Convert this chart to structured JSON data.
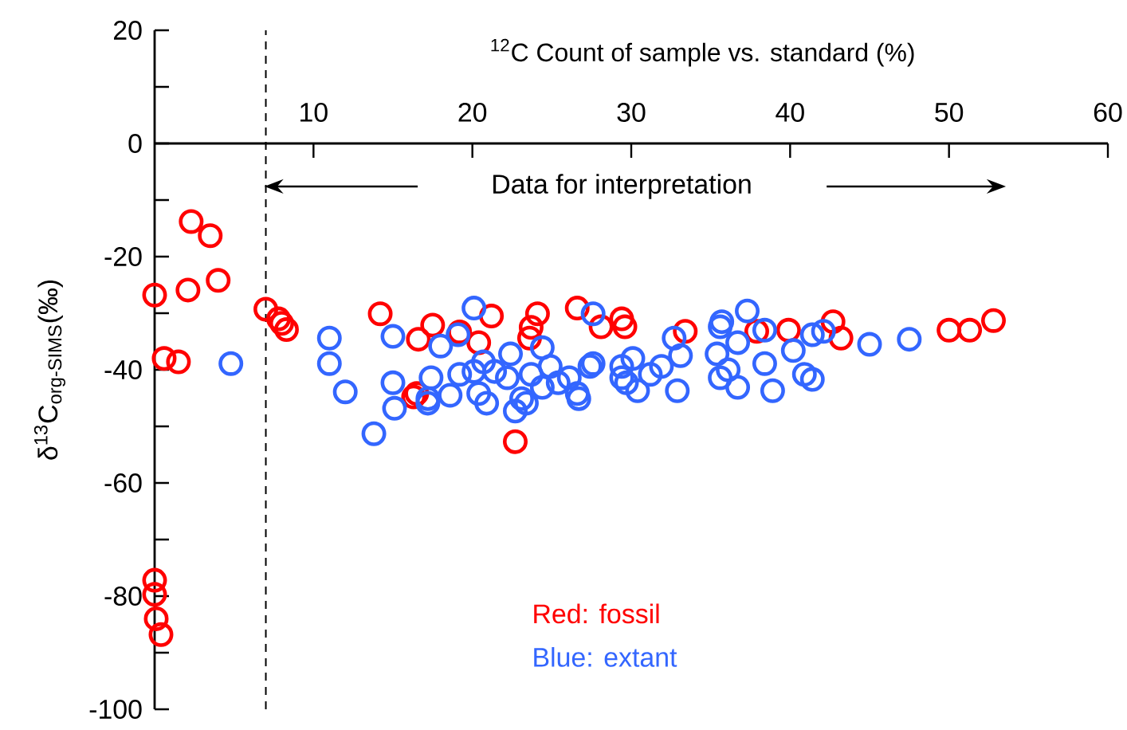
{
  "chart_data": {
    "type": "scatter",
    "xlabel": "$^{12}$C Count  of sample vs. standard (%)",
    "ylabel": "δ$^{13}$C$_{org-SIMS}$(‰)",
    "xlim": [
      0,
      60
    ],
    "xticks": [
      10,
      20,
      30,
      40,
      50,
      60
    ],
    "ylim": [
      -100,
      20
    ],
    "yticks": [
      20,
      {
        "value": 10,
        "label": null
      },
      0,
      {
        "value": -10,
        "label": null
      },
      -20,
      {
        "value": -30,
        "label": null
      },
      -40,
      {
        "value": -50,
        "label": null
      },
      -60,
      {
        "value": -70,
        "label": null
      },
      -80,
      {
        "value": -90,
        "label": null
      },
      -100
    ],
    "marker": "circle",
    "ref_lines": [
      {
        "axis": "x",
        "value": 7,
        "line_style": "dashed"
      }
    ],
    "annotations": [
      "Data for interpretation",
      "Red: fossil",
      "Blue: extant"
    ],
    "series": [
      {
        "color": "#ff0000",
        "x": [
          2.3,
          3.5,
          0,
          2.1,
          4.0,
          0.6,
          1.5,
          7.0,
          7.8,
          8.3,
          8.0,
          0,
          0,
          0.1,
          0.4,
          14.2,
          16.6,
          17.5,
          16.3,
          21.2,
          20.4,
          19.2,
          24.1,
          23.7,
          23.6,
          26.6,
          29.4,
          29.6,
          28.1,
          22.7,
          16.5,
          33.4,
          37.9,
          39.9,
          42.7,
          43.2,
          50.0,
          51.3,
          52.8
        ],
        "values": [
          -13.8,
          -16.3,
          -26.8,
          -25.9,
          -24.2,
          -38.0,
          -38.6,
          -29.3,
          -31.0,
          -32.9,
          -31.8,
          -77.2,
          -79.7,
          -84,
          -86.8,
          -30.1,
          -34.6,
          -32.1,
          -44.8,
          -30.5,
          -35.2,
          -33.3,
          -30.1,
          -32.5,
          -34.4,
          -29.1,
          -31.0,
          -32.4,
          -32.4,
          -52.7,
          -44.2,
          -33.2,
          -33.2,
          -33.0,
          -31.5,
          -34.4,
          -33.0,
          -33.0,
          -31.3
        ]
      },
      {
        "color": "#3366ff",
        "x": [
          4.8,
          11.0,
          11.0,
          12.0,
          13.8,
          15.0,
          18.0,
          15.0,
          15.1,
          17.2,
          19.1,
          20.1,
          27.6,
          24.4,
          22.4,
          17.4,
          17.2,
          18.6,
          19.2,
          20.1,
          20.4,
          20.9,
          21.4,
          20.7,
          22.2,
          23.1,
          22.7,
          23.4,
          23.7,
          24.9,
          24.4,
          25.4,
          26.1,
          26.6,
          26.7,
          27.4,
          27.6,
          29.4,
          30.1,
          29.4,
          32.7,
          33.1,
          32.9,
          30.4,
          31.9,
          31.2,
          29.7,
          35.6,
          35.7,
          35.4,
          35.6,
          36.1,
          36.7,
          36.7,
          37.3,
          38.4,
          38.4,
          38.9,
          40.2,
          40.9,
          41.4,
          41.4,
          42.1,
          45.0,
          47.5
        ],
        "values": [
          -38.9,
          -34.4,
          -38.9,
          -43.9,
          -51.3,
          -34.1,
          -35.8,
          -42.3,
          -46.8,
          -45.1,
          -33.8,
          -29.1,
          -30.1,
          -36.1,
          -37.2,
          -41.4,
          -45.9,
          -44.5,
          -40.8,
          -40.3,
          -44.2,
          -45.9,
          -40.3,
          -38.6,
          -41.4,
          -45.1,
          -47.3,
          -45.9,
          -40.8,
          -39.4,
          -43.1,
          -42.3,
          -41.4,
          -44.2,
          -45.1,
          -39.4,
          -38.9,
          -39.4,
          -38.0,
          -41.4,
          -34.4,
          -37.5,
          -43.7,
          -43.7,
          -39.4,
          -40.8,
          -42.3,
          -32.4,
          -31.5,
          -37.2,
          -41.4,
          -40.0,
          -43.1,
          -35.2,
          -29.6,
          -33.0,
          -38.9,
          -43.7,
          -36.6,
          -40.8,
          -41.7,
          -33.8,
          -33.2,
          -35.5,
          -34.6
        ]
      }
    ]
  }
}
